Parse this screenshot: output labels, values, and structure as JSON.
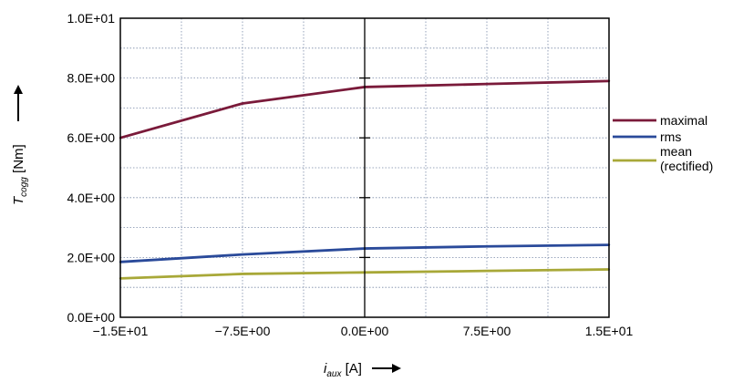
{
  "chart_data": {
    "type": "line",
    "x": [
      -15,
      -7.5,
      0,
      7.5,
      15
    ],
    "xticks": [
      -15,
      -7.5,
      0,
      7.5,
      15
    ],
    "xtick_labels": [
      "−1.5E+01",
      "−7.5E+00",
      "0.0E+00",
      "7.5E+00",
      "1.5E+01"
    ],
    "xlim": [
      -15,
      15
    ],
    "ylim": [
      0,
      10
    ],
    "yticks": [
      0,
      2,
      4,
      6,
      8,
      10
    ],
    "ytick_labels": [
      "0.0E+00",
      "2.0E+00",
      "4.0E+00",
      "6.0E+00",
      "8.0E+00",
      "1.0E+01"
    ],
    "grid": true,
    "legend_position": "right",
    "series": [
      {
        "name": "maximal",
        "values": [
          6.0,
          7.15,
          7.7,
          7.8,
          7.9
        ],
        "color": "#7a1a3a"
      },
      {
        "name": "rms",
        "values": [
          1.85,
          2.1,
          2.3,
          2.37,
          2.42
        ],
        "color": "#2a4a9a"
      },
      {
        "name": "mean (rectified)",
        "values": [
          1.3,
          1.45,
          1.5,
          1.55,
          1.6
        ],
        "color": "#a8a838"
      }
    ],
    "legend": [
      {
        "lines": [
          "maximal"
        ]
      },
      {
        "lines": [
          "rms"
        ]
      },
      {
        "lines": [
          "mean",
          "(rectified)"
        ]
      }
    ],
    "ylabel": {
      "main": "T",
      "sub": "cogg",
      "unit": " [Nm]"
    },
    "xlabel": {
      "main": "i",
      "sub": "aux",
      "unit": " [A]"
    }
  }
}
